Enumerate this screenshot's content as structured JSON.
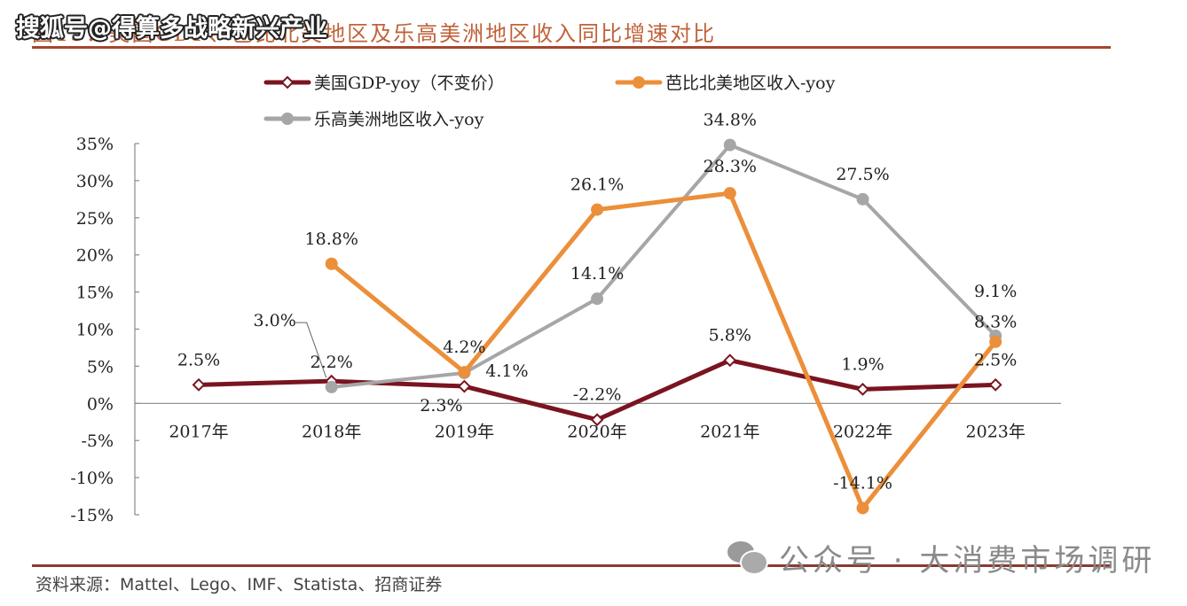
{
  "watermark_top": "搜狐号@得算多战略新兴产业",
  "chart_data": {
    "type": "line",
    "title": "图15：美国GDP、芭比北美地区及乐高美洲地区收入同比增速对比",
    "xlabel": "",
    "ylabel": "",
    "categories": [
      "2017年",
      "2018年",
      "2019年",
      "2020年",
      "2021年",
      "2022年",
      "2023年"
    ],
    "ylim": [
      -15,
      35
    ],
    "yticks": [
      35,
      30,
      25,
      20,
      15,
      10,
      5,
      0,
      -5,
      -10,
      -15
    ],
    "ytick_labels": [
      "35%",
      "30%",
      "25%",
      "20%",
      "15%",
      "10%",
      "5%",
      "0%",
      "-5%",
      "-10%",
      "-15%"
    ],
    "legend_position": "top",
    "grid": false,
    "series": [
      {
        "name": "美国GDP-yoy（不变价）",
        "color": "#7a1420",
        "marker": "diamond-hollow",
        "values": [
          2.5,
          3.0,
          2.3,
          -2.2,
          5.8,
          1.9,
          2.5
        ],
        "labels": [
          "2.5%",
          "3.0%",
          "2.3%",
          "-2.2%",
          "5.8%",
          "1.9%",
          "2.5%"
        ]
      },
      {
        "name": "芭比北美地区收入-yoy",
        "color": "#ec8f3a",
        "marker": "circle",
        "values": [
          null,
          18.8,
          4.2,
          26.1,
          28.3,
          -14.1,
          8.3
        ],
        "labels": [
          null,
          "18.8%",
          "4.2%",
          "26.1%",
          "28.3%",
          "-14.1%",
          "8.3%"
        ]
      },
      {
        "name": "乐高美洲地区收入-yoy",
        "color": "#a6a6a6",
        "marker": "circle",
        "values": [
          null,
          2.2,
          4.1,
          14.1,
          34.8,
          27.5,
          9.1
        ],
        "labels": [
          null,
          "2.2%",
          "4.1%",
          "14.1%",
          "34.8%",
          "27.5%",
          "9.1%"
        ]
      }
    ]
  },
  "footer": {
    "source": "资料来源：Mattel、Lego、IMF、Statista、招商证券",
    "watermark": "公众号 · 大消费市场调研"
  }
}
